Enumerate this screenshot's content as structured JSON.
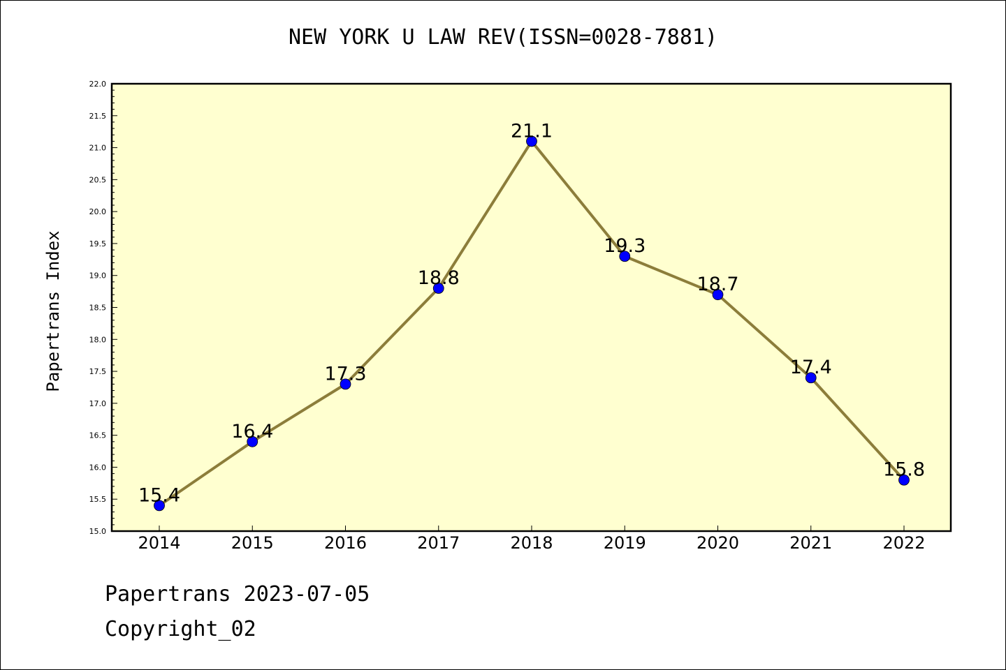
{
  "chart_data": {
    "type": "line",
    "title": "NEW YORK U LAW REV(ISSN=0028-7881)",
    "xlabel": "",
    "ylabel": "Papertrans Index",
    "x": [
      "2014",
      "2015",
      "2016",
      "2017",
      "2018",
      "2019",
      "2020",
      "2021",
      "2022"
    ],
    "series": [
      {
        "values": [
          15.4,
          16.4,
          17.3,
          18.8,
          21.1,
          19.3,
          18.7,
          17.4,
          15.8
        ]
      }
    ],
    "data_labels": [
      "15.4",
      "16.4",
      "17.3",
      "18.8",
      "21.1",
      "19.3",
      "18.7",
      "17.4",
      "15.8"
    ],
    "ylim": [
      15.0,
      22.0
    ],
    "y_ticks": [
      "15.0",
      "15.5",
      "16.0",
      "16.5",
      "17.0",
      "17.5",
      "18.0",
      "18.5",
      "19.0",
      "19.5",
      "20.0",
      "20.5",
      "21.0",
      "21.5",
      "22.0"
    ],
    "grid": false,
    "legend": "none",
    "colors": {
      "plot_background": "#ffffd0",
      "line": "#8c7d3a",
      "marker": "#0000ff"
    }
  },
  "footer": {
    "line1": "Papertrans 2023-07-05",
    "line2": "Copyright_02"
  }
}
